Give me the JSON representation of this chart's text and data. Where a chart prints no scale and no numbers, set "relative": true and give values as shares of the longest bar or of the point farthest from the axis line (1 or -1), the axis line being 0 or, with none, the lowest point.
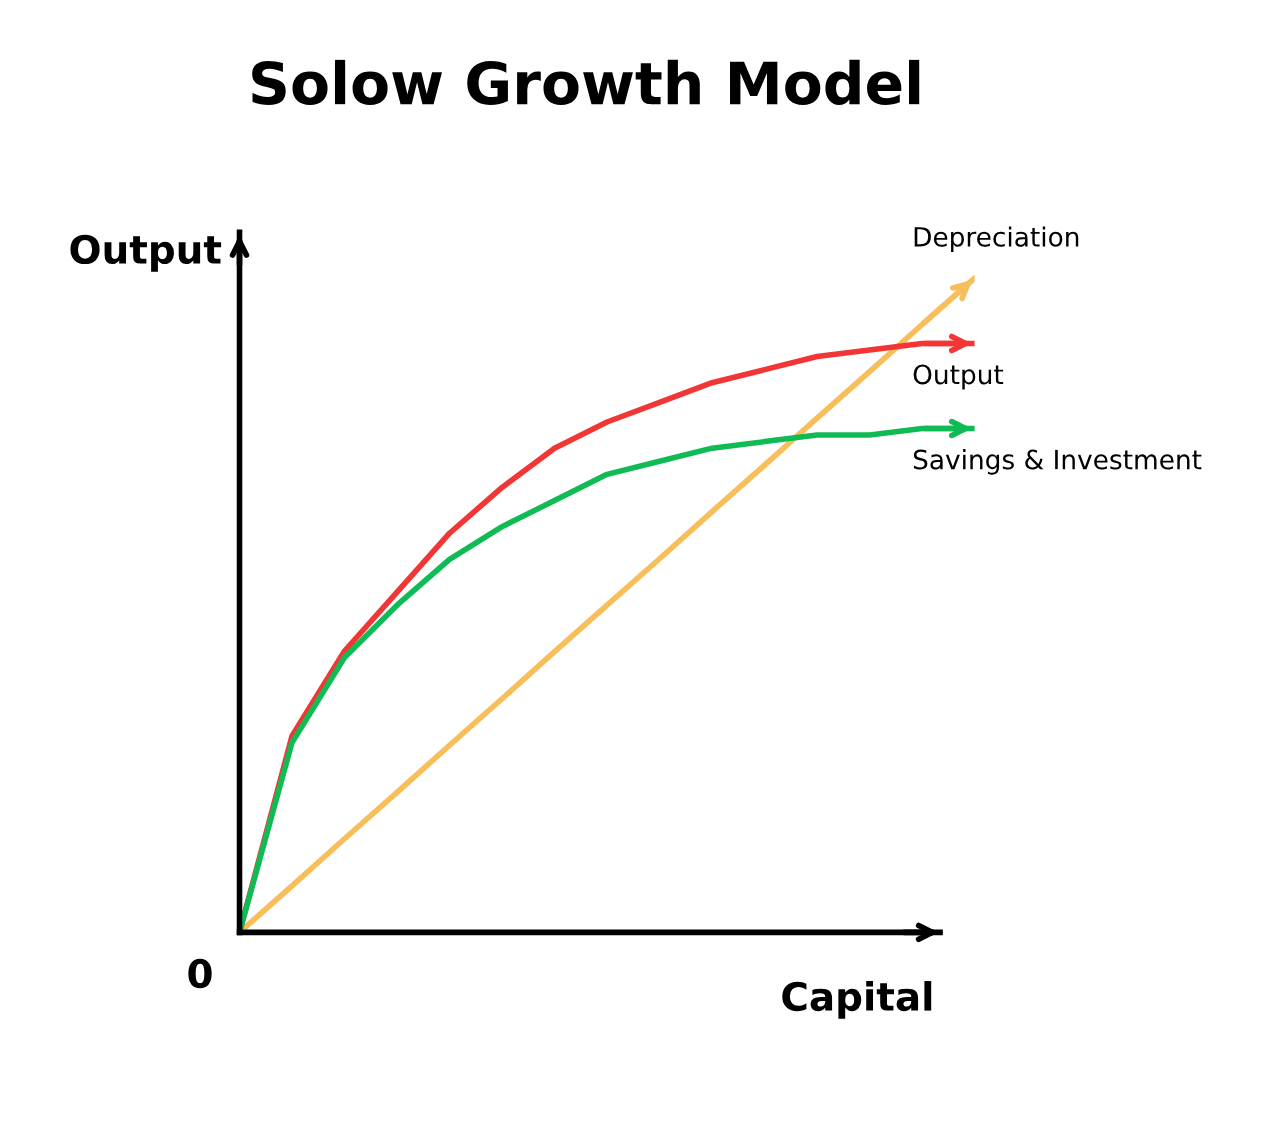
{
  "chart_data": {
    "type": "line",
    "title": "Solow Growth Model",
    "xlabel": "Capital",
    "ylabel": "Output",
    "relative": true,
    "categories": [
      null,
      null,
      null,
      null,
      null,
      null,
      null,
      null,
      null,
      null,
      null,
      null,
      null,
      null,
      null
    ],
    "series": [
      {
        "name": "Depreciation",
        "color": "#f7be5a",
        "values": [
          0,
          0.071,
          0.143,
          0.214,
          0.286,
          0.357,
          0.429,
          0.5,
          0.571,
          0.643,
          0.714,
          0.786,
          0.857,
          0.929,
          1
        ]
      },
      {
        "name": "Output",
        "color": "#f23636",
        "values": [
          0,
          0.3,
          0.43,
          0.52,
          0.61,
          0.68,
          0.74,
          0.78,
          0.81,
          0.84,
          0.86,
          0.88,
          0.89,
          0.9,
          0.9
        ]
      },
      {
        "name": "Savings & Investment",
        "color": "#0fbb55",
        "values": [
          0,
          0.29,
          0.42,
          0.5,
          0.57,
          0.62,
          0.66,
          0.7,
          0.72,
          0.74,
          0.75,
          0.76,
          0.76,
          0.77,
          0.77
        ]
      }
    ],
    "annotations": [
      "0"
    ],
    "legend": "right"
  }
}
